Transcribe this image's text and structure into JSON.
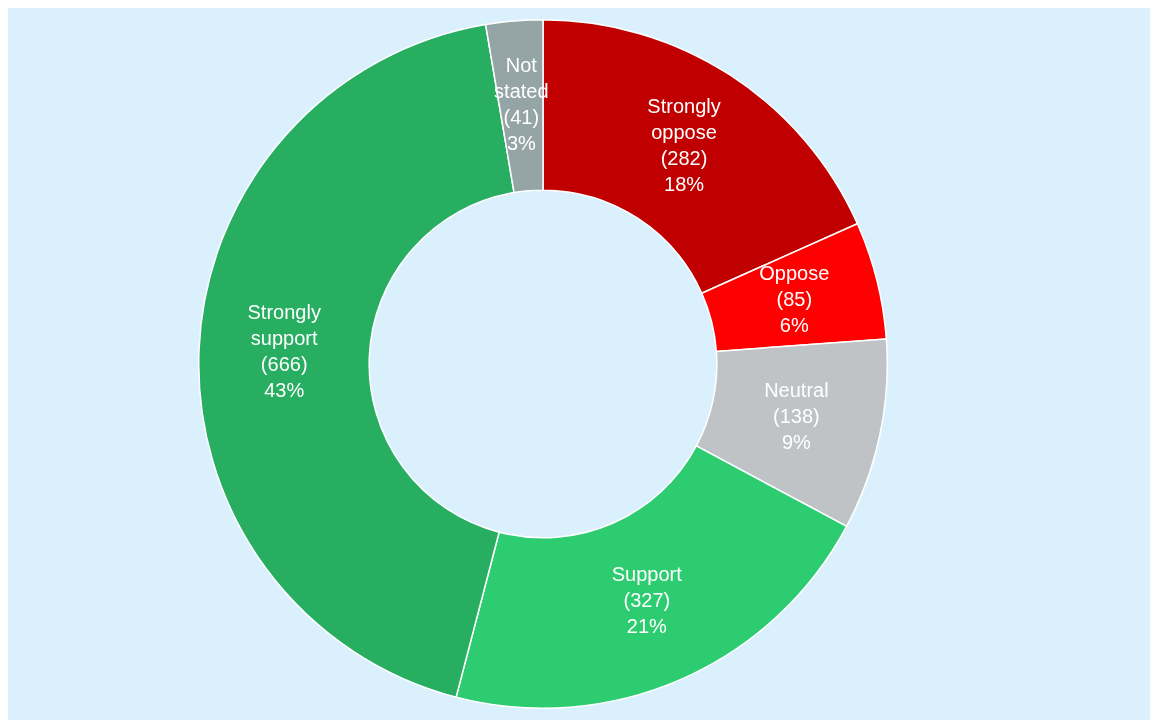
{
  "chart_data": {
    "type": "donut",
    "categories": [
      "Strongly oppose",
      "Oppose",
      "Neutral",
      "Support",
      "Strongly support",
      "Not stated"
    ],
    "values": [
      282,
      85,
      138,
      327,
      666,
      41
    ],
    "colors": [
      "#c00000",
      "#ff0000",
      "#bfc3c6",
      "#2ecc71",
      "#27ae60",
      "#95a5a6"
    ],
    "value_labels": [
      "(282)\n18%",
      "(85)\n6%",
      "(138)\n9%",
      "(327)\n21%",
      "(666)\n43%",
      "(41)\n3%"
    ],
    "legend": false
  }
}
